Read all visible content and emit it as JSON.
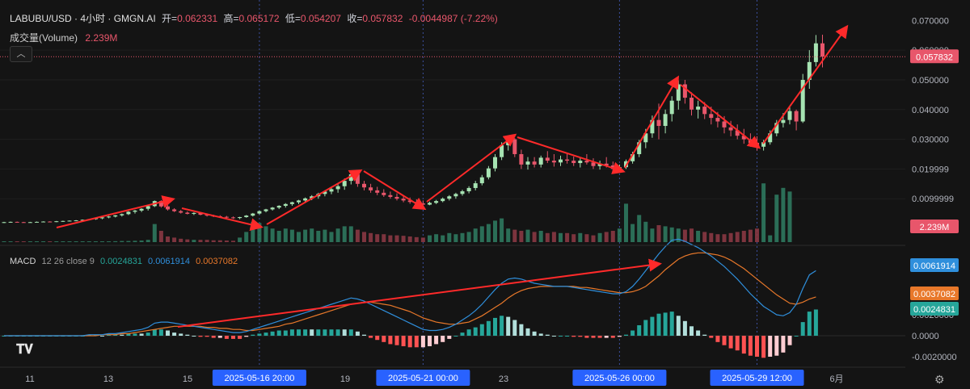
{
  "header": {
    "symbol": "LABUBU/USD · 4小时 · GMGN.AI",
    "open_label": "开=",
    "open": "0.062331",
    "high_label": "高=",
    "high": "0.065172",
    "low_label": "低=",
    "low": "0.054207",
    "close_label": "收=",
    "close": "0.057832",
    "change": "-0.0044987 (-7.22%)"
  },
  "volume_header": {
    "label": "成交量(Volume)",
    "value": "2.239M"
  },
  "macd_header": {
    "label": "MACD",
    "params": "12 26 close 9",
    "hist": "0.0024831",
    "macd": "0.0061914",
    "signal": "0.0037082"
  },
  "price_axis": [
    "0.070000",
    "0.060000",
    "0.050000",
    "0.040000",
    "0.030000",
    "0.019999",
    "0.0099999"
  ],
  "macd_axis": [
    "0.0040000",
    "0.0020000",
    "0.0000",
    "-0.0020000"
  ],
  "badges": {
    "price": "0.057832",
    "volume": "2.239M",
    "macd": "0.0061914",
    "signal": "0.0037082",
    "hist": "0.0024831"
  },
  "x_ticks": [
    "11",
    "13",
    "15",
    "19",
    "23",
    "6月"
  ],
  "crosshair_labels": [
    "2025-05-16  20:00",
    "2025-05-21  00:00",
    "2025-05-26  00:00",
    "2025-05-29  12:00"
  ],
  "colors": {
    "up": "#a6e3b2",
    "down": "#e8566b",
    "macd": "#2f8fdc",
    "signal": "#e8782a",
    "arrow": "#ff2a2a",
    "crosshair_label_bg": "#2962ff"
  },
  "chart_data": {
    "type": "candlestick",
    "timeframe": "4h",
    "y_range": [
      0.0,
      0.072
    ],
    "points": [
      [
        0.002,
        0.0022,
        0.0018,
        0.0021
      ],
      [
        0.0021,
        0.0023,
        0.0019,
        0.0022
      ],
      [
        0.0022,
        0.0023,
        0.002,
        0.0021
      ],
      [
        0.0021,
        0.0022,
        0.0019,
        0.002
      ],
      [
        0.002,
        0.0022,
        0.0019,
        0.0021
      ],
      [
        0.0021,
        0.0023,
        0.002,
        0.0022
      ],
      [
        0.0022,
        0.0024,
        0.0021,
        0.0023
      ],
      [
        0.0023,
        0.0024,
        0.0021,
        0.0022
      ],
      [
        0.0022,
        0.0025,
        0.0021,
        0.0024
      ],
      [
        0.0024,
        0.0026,
        0.0022,
        0.0025
      ],
      [
        0.0025,
        0.0027,
        0.0023,
        0.0026
      ],
      [
        0.0026,
        0.0028,
        0.0024,
        0.0027
      ],
      [
        0.0027,
        0.003,
        0.0025,
        0.0029
      ],
      [
        0.0029,
        0.0032,
        0.0027,
        0.0031
      ],
      [
        0.0031,
        0.0035,
        0.0029,
        0.0034
      ],
      [
        0.0034,
        0.0038,
        0.0031,
        0.0037
      ],
      [
        0.0037,
        0.0042,
        0.0034,
        0.004
      ],
      [
        0.004,
        0.0045,
        0.0037,
        0.0044
      ],
      [
        0.0044,
        0.005,
        0.004,
        0.0048
      ],
      [
        0.0048,
        0.0058,
        0.0045,
        0.0056
      ],
      [
        0.0056,
        0.0062,
        0.005,
        0.006
      ],
      [
        0.006,
        0.0068,
        0.0055,
        0.0066
      ],
      [
        0.0066,
        0.0078,
        0.006,
        0.0075
      ],
      [
        0.0075,
        0.0094,
        0.0072,
        0.0092
      ],
      [
        0.0092,
        0.0095,
        0.007,
        0.0074
      ],
      [
        0.0074,
        0.0078,
        0.006,
        0.0064
      ],
      [
        0.0064,
        0.0068,
        0.0055,
        0.0058
      ],
      [
        0.0058,
        0.0062,
        0.005,
        0.0053
      ],
      [
        0.0053,
        0.0057,
        0.0047,
        0.0049
      ],
      [
        0.0049,
        0.0054,
        0.0045,
        0.0052
      ],
      [
        0.0052,
        0.0055,
        0.0044,
        0.0046
      ],
      [
        0.0046,
        0.0049,
        0.004,
        0.0043
      ],
      [
        0.0043,
        0.0046,
        0.0038,
        0.0041
      ],
      [
        0.0041,
        0.0044,
        0.0036,
        0.0039
      ],
      [
        0.0039,
        0.0042,
        0.0034,
        0.0037
      ],
      [
        0.0037,
        0.004,
        0.0032,
        0.0035
      ],
      [
        0.0035,
        0.0039,
        0.0031,
        0.0038
      ],
      [
        0.0038,
        0.0045,
        0.0036,
        0.0043
      ],
      [
        0.0043,
        0.0052,
        0.004,
        0.005
      ],
      [
        0.005,
        0.006,
        0.0047,
        0.0058
      ],
      [
        0.0058,
        0.0066,
        0.0054,
        0.0064
      ],
      [
        0.0064,
        0.0072,
        0.006,
        0.007
      ],
      [
        0.007,
        0.0078,
        0.0065,
        0.0076
      ],
      [
        0.0076,
        0.0085,
        0.007,
        0.0082
      ],
      [
        0.0082,
        0.009,
        0.0076,
        0.0088
      ],
      [
        0.0088,
        0.0096,
        0.0082,
        0.0094
      ],
      [
        0.0094,
        0.0104,
        0.0088,
        0.0101
      ],
      [
        0.0101,
        0.0112,
        0.0095,
        0.0108
      ],
      [
        0.0108,
        0.012,
        0.01,
        0.0116
      ],
      [
        0.0116,
        0.0128,
        0.0108,
        0.0124
      ],
      [
        0.0124,
        0.0136,
        0.0115,
        0.0132
      ],
      [
        0.0132,
        0.0148,
        0.012,
        0.0142
      ],
      [
        0.0142,
        0.0168,
        0.013,
        0.016
      ],
      [
        0.016,
        0.019,
        0.0148,
        0.0182
      ],
      [
        0.0182,
        0.0186,
        0.014,
        0.015
      ],
      [
        0.015,
        0.016,
        0.0128,
        0.0138
      ],
      [
        0.0138,
        0.015,
        0.012,
        0.0128
      ],
      [
        0.0128,
        0.014,
        0.0112,
        0.012
      ],
      [
        0.012,
        0.0132,
        0.0106,
        0.0112
      ],
      [
        0.0112,
        0.0124,
        0.01,
        0.0106
      ],
      [
        0.0106,
        0.0118,
        0.0094,
        0.01
      ],
      [
        0.01,
        0.011,
        0.0088,
        0.0094
      ],
      [
        0.0094,
        0.0104,
        0.0083,
        0.0089
      ],
      [
        0.0089,
        0.0098,
        0.0079,
        0.0084
      ],
      [
        0.0084,
        0.0094,
        0.0076,
        0.008
      ],
      [
        0.008,
        0.009,
        0.0078,
        0.0086
      ],
      [
        0.0086,
        0.0096,
        0.0082,
        0.0092
      ],
      [
        0.0092,
        0.0104,
        0.0088,
        0.01
      ],
      [
        0.01,
        0.0112,
        0.0094,
        0.0108
      ],
      [
        0.0108,
        0.012,
        0.01,
        0.0116
      ],
      [
        0.0116,
        0.013,
        0.011,
        0.0125
      ],
      [
        0.0125,
        0.0142,
        0.0118,
        0.0136
      ],
      [
        0.0136,
        0.016,
        0.0128,
        0.0152
      ],
      [
        0.0152,
        0.018,
        0.0145,
        0.0172
      ],
      [
        0.0172,
        0.021,
        0.0165,
        0.0202
      ],
      [
        0.0202,
        0.025,
        0.0192,
        0.024
      ],
      [
        0.024,
        0.029,
        0.023,
        0.028
      ],
      [
        0.028,
        0.031,
        0.0262,
        0.03
      ],
      [
        0.03,
        0.0304,
        0.024,
        0.025
      ],
      [
        0.025,
        0.0265,
        0.02,
        0.0215
      ],
      [
        0.0215,
        0.024,
        0.0198,
        0.0225
      ],
      [
        0.0225,
        0.024,
        0.0205,
        0.0215
      ],
      [
        0.0215,
        0.0245,
        0.0205,
        0.0238
      ],
      [
        0.0238,
        0.026,
        0.022,
        0.0228
      ],
      [
        0.0228,
        0.025,
        0.0208,
        0.0222
      ],
      [
        0.0222,
        0.0245,
        0.021,
        0.0232
      ],
      [
        0.0232,
        0.0255,
        0.0218,
        0.0228
      ],
      [
        0.0228,
        0.0242,
        0.021,
        0.022
      ],
      [
        0.022,
        0.0238,
        0.0205,
        0.0228
      ],
      [
        0.0228,
        0.025,
        0.0215,
        0.0222
      ],
      [
        0.0222,
        0.0236,
        0.02,
        0.021
      ],
      [
        0.021,
        0.0228,
        0.0198,
        0.0218
      ],
      [
        0.0218,
        0.024,
        0.0205,
        0.0212
      ],
      [
        0.0212,
        0.0225,
        0.0192,
        0.02
      ],
      [
        0.02,
        0.0215,
        0.0188,
        0.0206
      ],
      [
        0.0206,
        0.0232,
        0.02,
        0.0226
      ],
      [
        0.0226,
        0.0258,
        0.0218,
        0.025
      ],
      [
        0.025,
        0.0298,
        0.024,
        0.029
      ],
      [
        0.029,
        0.0335,
        0.027,
        0.032
      ],
      [
        0.032,
        0.038,
        0.0305,
        0.0365
      ],
      [
        0.0365,
        0.042,
        0.03,
        0.0345
      ],
      [
        0.0345,
        0.04,
        0.032,
        0.0385
      ],
      [
        0.0385,
        0.0445,
        0.036,
        0.043
      ],
      [
        0.043,
        0.0498,
        0.04,
        0.0485
      ],
      [
        0.0485,
        0.05,
        0.042,
        0.044
      ],
      [
        0.044,
        0.0458,
        0.038,
        0.04
      ],
      [
        0.04,
        0.043,
        0.037,
        0.041
      ],
      [
        0.041,
        0.0425,
        0.0368,
        0.0385
      ],
      [
        0.0385,
        0.041,
        0.035,
        0.0372
      ],
      [
        0.0372,
        0.0392,
        0.034,
        0.036
      ],
      [
        0.036,
        0.0378,
        0.032,
        0.034
      ],
      [
        0.034,
        0.0362,
        0.031,
        0.033
      ],
      [
        0.033,
        0.035,
        0.03,
        0.0312
      ],
      [
        0.0312,
        0.0335,
        0.0285,
        0.03
      ],
      [
        0.03,
        0.032,
        0.0275,
        0.0288
      ],
      [
        0.0288,
        0.031,
        0.0262,
        0.0275
      ],
      [
        0.0275,
        0.0298,
        0.0262,
        0.029
      ],
      [
        0.029,
        0.033,
        0.0282,
        0.032
      ],
      [
        0.032,
        0.0365,
        0.031,
        0.0355
      ],
      [
        0.0355,
        0.0388,
        0.034,
        0.0365
      ],
      [
        0.0365,
        0.041,
        0.035,
        0.0395
      ],
      [
        0.0395,
        0.04,
        0.033,
        0.036
      ],
      [
        0.036,
        0.052,
        0.0355,
        0.05
      ],
      [
        0.05,
        0.06,
        0.047,
        0.056
      ],
      [
        0.056,
        0.0651,
        0.0545,
        0.0623
      ],
      [
        0.0623,
        0.0652,
        0.0542,
        0.0578
      ]
    ],
    "volume_m": [
      0.01,
      0.01,
      0.01,
      0.01,
      0.01,
      0.01,
      0.01,
      0.01,
      0.01,
      0.01,
      0.02,
      0.02,
      0.02,
      0.02,
      0.03,
      0.03,
      0.03,
      0.04,
      0.05,
      0.05,
      0.06,
      0.07,
      0.1,
      0.8,
      0.5,
      0.25,
      0.2,
      0.15,
      0.12,
      0.1,
      0.1,
      0.1,
      0.08,
      0.08,
      0.07,
      0.06,
      0.2,
      0.45,
      0.9,
      0.85,
      0.7,
      0.6,
      0.5,
      0.6,
      0.55,
      0.45,
      0.55,
      0.6,
      0.5,
      0.55,
      0.45,
      0.6,
      0.7,
      0.7,
      0.55,
      0.45,
      0.4,
      0.35,
      0.35,
      0.3,
      0.3,
      0.28,
      0.25,
      0.22,
      0.2,
      0.3,
      0.35,
      0.3,
      0.4,
      0.35,
      0.4,
      0.45,
      0.6,
      0.7,
      0.8,
      0.95,
      1.05,
      0.6,
      0.55,
      0.5,
      0.55,
      0.45,
      0.5,
      0.4,
      0.45,
      0.4,
      0.4,
      0.35,
      0.4,
      0.35,
      0.3,
      0.4,
      0.45,
      0.5,
      0.6,
      1.7,
      0.8,
      1.2,
      0.9,
      0.6,
      0.75,
      0.7,
      0.65,
      0.6,
      0.55,
      0.6,
      0.5,
      0.45,
      0.4,
      0.35,
      0.35,
      0.4,
      0.45,
      0.5,
      0.55,
      0.6,
      2.6,
      0.3,
      2.1,
      2.4,
      2.239
    ],
    "macd_series": [
      0.0,
      0.0,
      0.0,
      0.0,
      0.0,
      0.0,
      0.0,
      0.0,
      0.0,
      0.0,
      0.0,
      0.0,
      0.0,
      0.0001,
      0.0001,
      0.0001,
      0.0002,
      0.0002,
      0.0003,
      0.0004,
      0.0005,
      0.0006,
      0.0008,
      0.0012,
      0.0013,
      0.0013,
      0.0012,
      0.0011,
      0.001,
      0.0009,
      0.0008,
      0.0007,
      0.0006,
      0.0005,
      0.0004,
      0.0003,
      0.0003,
      0.0004,
      0.0006,
      0.0008,
      0.001,
      0.0012,
      0.0014,
      0.0016,
      0.0018,
      0.002,
      0.0022,
      0.0024,
      0.0026,
      0.0028,
      0.003,
      0.0032,
      0.0034,
      0.0036,
      0.0035,
      0.0033,
      0.003,
      0.0027,
      0.0024,
      0.0021,
      0.0018,
      0.0015,
      0.0012,
      0.0009,
      0.0006,
      0.0005,
      0.0005,
      0.0006,
      0.0008,
      0.0011,
      0.0015,
      0.0019,
      0.0024,
      0.003,
      0.0037,
      0.0044,
      0.005,
      0.0054,
      0.0055,
      0.0054,
      0.0052,
      0.005,
      0.0049,
      0.0048,
      0.0047,
      0.0047,
      0.0047,
      0.0046,
      0.0045,
      0.0044,
      0.0043,
      0.0042,
      0.0041,
      0.004,
      0.004,
      0.0042,
      0.0047,
      0.0054,
      0.0062,
      0.007,
      0.0078,
      0.0085,
      0.0091,
      0.0092,
      0.009,
      0.0087,
      0.0084,
      0.008,
      0.0076,
      0.0071,
      0.0066,
      0.006,
      0.0054,
      0.0047,
      0.004,
      0.0034,
      0.0028,
      0.0024,
      0.002,
      0.0019,
      0.0022,
      0.003,
      0.0045,
      0.0058,
      0.0062
    ],
    "signal_series": [
      0.0,
      0.0,
      0.0,
      0.0,
      0.0,
      0.0,
      0.0,
      0.0,
      0.0,
      0.0,
      0.0,
      0.0,
      0.0,
      0.0,
      0.0,
      0.0001,
      0.0001,
      0.0001,
      0.0002,
      0.0002,
      0.0003,
      0.0004,
      0.0005,
      0.0006,
      0.0007,
      0.0008,
      0.0009,
      0.0009,
      0.0009,
      0.0009,
      0.0009,
      0.0008,
      0.0008,
      0.0007,
      0.0007,
      0.0006,
      0.0006,
      0.0005,
      0.0005,
      0.0006,
      0.0007,
      0.0008,
      0.0009,
      0.0011,
      0.0012,
      0.0014,
      0.0016,
      0.0018,
      0.002,
      0.0022,
      0.0024,
      0.0026,
      0.0028,
      0.003,
      0.0031,
      0.0032,
      0.0032,
      0.0031,
      0.003,
      0.0029,
      0.0027,
      0.0025,
      0.0023,
      0.002,
      0.0017,
      0.0015,
      0.0013,
      0.0012,
      0.0011,
      0.0011,
      0.0012,
      0.0013,
      0.0016,
      0.0019,
      0.0023,
      0.0027,
      0.0031,
      0.0036,
      0.004,
      0.0043,
      0.0045,
      0.0046,
      0.0047,
      0.0047,
      0.0047,
      0.0047,
      0.0047,
      0.0047,
      0.0046,
      0.0046,
      0.0045,
      0.0044,
      0.0043,
      0.0042,
      0.0041,
      0.0041,
      0.0042,
      0.0044,
      0.0047,
      0.0052,
      0.0057,
      0.0063,
      0.0068,
      0.0073,
      0.0076,
      0.0078,
      0.0079,
      0.0079,
      0.0078,
      0.0077,
      0.0075,
      0.0072,
      0.0068,
      0.0064,
      0.0059,
      0.0054,
      0.0049,
      0.0044,
      0.0039,
      0.0035,
      0.0031,
      0.003,
      0.0032,
      0.0035,
      0.0037
    ]
  }
}
